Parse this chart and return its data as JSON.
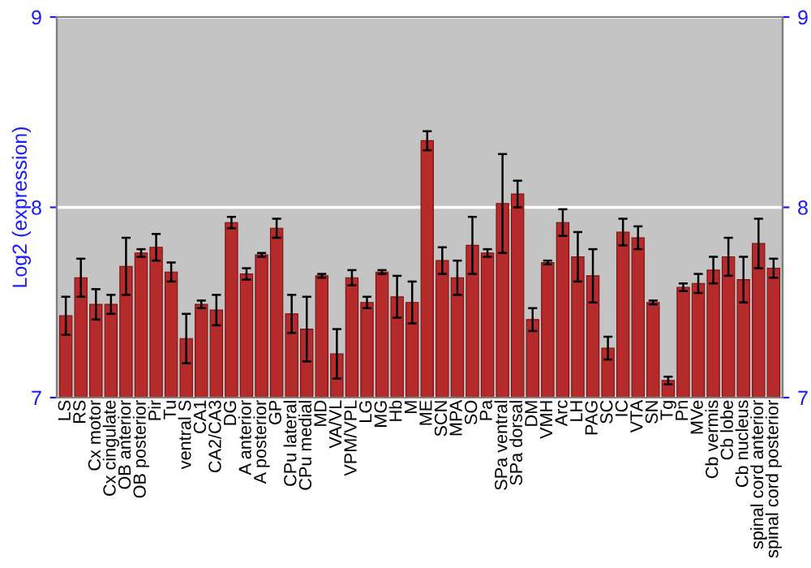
{
  "chart_data": {
    "type": "bar",
    "ylabel": "Log2 (expression)",
    "categories": [
      "LS",
      "RS",
      "Cx motor",
      "Cx cingulate",
      "OB anterior",
      "OB posterior",
      "Pir",
      "Tu",
      "ventral S",
      "CA1",
      "CA2/CA3",
      "DG",
      "A anterior",
      "A posterior",
      "GP",
      "CPu lateral",
      "CPu medial",
      "MD",
      "VA/VL",
      "VPM/VPL",
      "LG",
      "MG",
      "Hb",
      "M",
      "ME",
      "SCN",
      "MPA",
      "SO",
      "Pa",
      "SPa ventral",
      "SPa dorsal",
      "DM",
      "VMH",
      "Arc",
      "LH",
      "PAG",
      "SC",
      "IC",
      "VTA",
      "SN",
      "Tg",
      "Pn",
      "MVe",
      "Cb vermis",
      "Cb lobe",
      "Cb nucleus",
      "spinal cord anterior",
      "spinal cord posterior"
    ],
    "values": [
      7.43,
      7.63,
      7.49,
      7.49,
      7.69,
      7.76,
      7.79,
      7.66,
      7.31,
      7.49,
      7.46,
      7.92,
      7.65,
      7.75,
      7.89,
      7.44,
      7.36,
      7.64,
      7.23,
      7.63,
      7.5,
      7.66,
      7.53,
      7.5,
      8.35,
      7.72,
      7.63,
      7.8,
      7.76,
      8.02,
      8.07,
      7.41,
      7.71,
      7.92,
      7.74,
      7.64,
      7.26,
      7.87,
      7.84,
      7.5,
      7.09,
      7.58,
      7.6,
      7.67,
      7.74,
      7.62,
      7.81,
      7.68
    ],
    "errors": [
      0.1,
      0.1,
      0.08,
      0.05,
      0.15,
      0.02,
      0.07,
      0.05,
      0.13,
      0.02,
      0.08,
      0.03,
      0.03,
      0.01,
      0.05,
      0.1,
      0.17,
      0.01,
      0.13,
      0.04,
      0.03,
      0.01,
      0.11,
      0.11,
      0.05,
      0.07,
      0.09,
      0.15,
      0.02,
      0.26,
      0.07,
      0.06,
      0.01,
      0.07,
      0.13,
      0.14,
      0.06,
      0.07,
      0.06,
      0.01,
      0.02,
      0.02,
      0.05,
      0.07,
      0.1,
      0.12,
      0.13,
      0.05
    ],
    "color": "#b52a2a",
    "ylim": [
      7,
      9
    ],
    "yticks": [
      7,
      8,
      9
    ],
    "y2lim": [
      7,
      9
    ],
    "y2ticks": [
      7,
      8,
      9
    ],
    "grid": "y"
  }
}
